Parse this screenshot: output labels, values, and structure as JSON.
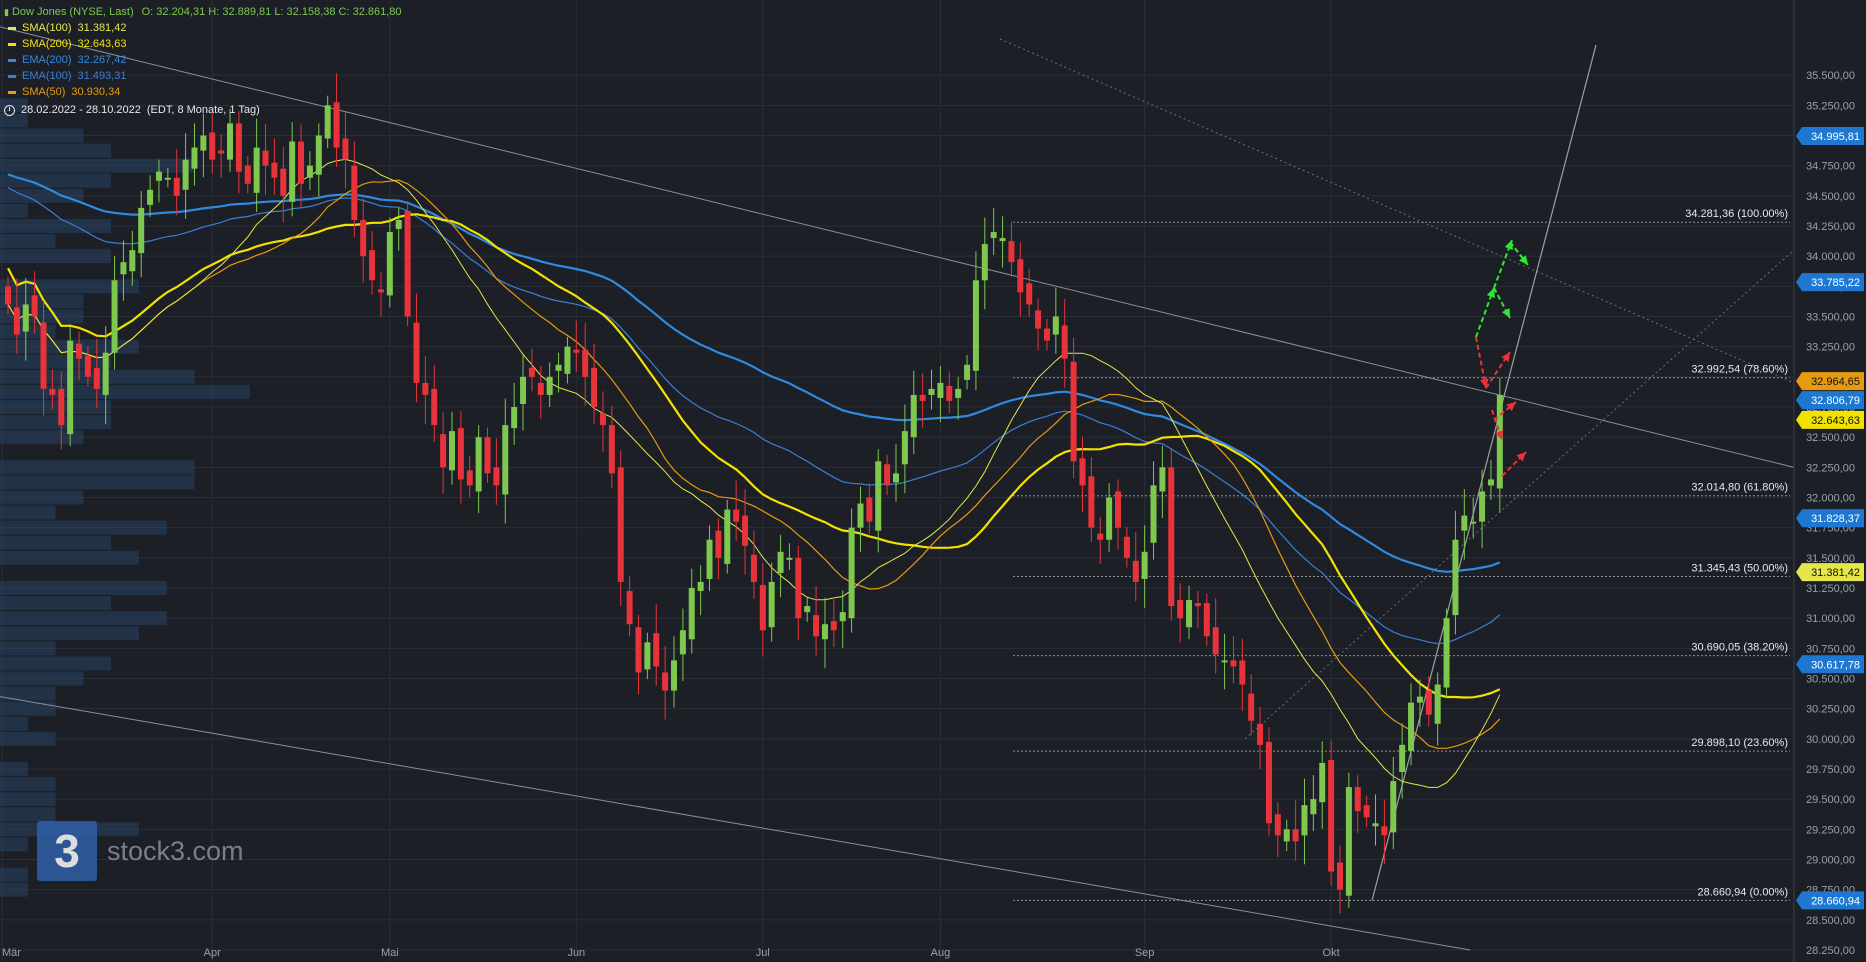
{
  "header": {
    "title": "Dow Jones (NYSE, Last)",
    "ohlc": "O: 32.204,31  H: 32.889,81  L: 32.158,38  C: 32.861,80",
    "period": "28.02.2022 - 28.10.2022",
    "period_detail": "(EDT, 8 Monate, 1 Tag)"
  },
  "indicators": [
    {
      "name": "SMA(100)",
      "value": "31.381,42",
      "color": "#e6e64a"
    },
    {
      "name": "SMA(200)",
      "value": "32.643,63",
      "color": "#f2e200"
    },
    {
      "name": "EMA(200)",
      "value": "32.267,42",
      "color": "#2f8ae0"
    },
    {
      "name": "EMA(100)",
      "value": "31.493,31",
      "color": "#3a7fd6"
    },
    {
      "name": "SMA(50)",
      "value": "30.930,34",
      "color": "#e69a10"
    }
  ],
  "logo": {
    "text": "stock3.com",
    "glyph": "3"
  },
  "colors": {
    "up": "#7ec84f",
    "down": "#e8333a",
    "background": "#1c1f26",
    "grid": "#2c3038"
  },
  "chart_data": {
    "type": "candlestick",
    "ylim": [
      28250,
      35750
    ],
    "y_ticks": [
      "28.250,00",
      "28.500,00",
      "28.750,00",
      "29.000,00",
      "29.250,00",
      "29.500,00",
      "29.750,00",
      "30.000,00",
      "30.250,00",
      "30.500,00",
      "30.750,00",
      "31.000,00",
      "31.250,00",
      "31.500,00",
      "31.750,00",
      "32.000,00",
      "32.250,00",
      "32.500,00",
      "32.750,00",
      "33.000,00",
      "33.250,00",
      "33.500,00",
      "33.750,00",
      "34.000,00",
      "34.250,00",
      "34.500,00",
      "34.750,00",
      "35.000,00",
      "35.250,00",
      "35.500,00"
    ],
    "x_labels": [
      {
        "label": "Mär",
        "index": 0
      },
      {
        "label": "Apr",
        "index": 23
      },
      {
        "label": "Mai",
        "index": 43
      },
      {
        "label": "Jun",
        "index": 64
      },
      {
        "label": "Jul",
        "index": 85
      },
      {
        "label": "Aug",
        "index": 105
      },
      {
        "label": "Sep",
        "index": 128
      },
      {
        "label": "Okt",
        "index": 149
      }
    ],
    "price_markers": [
      {
        "value": 34995.81,
        "label": "34.995,81",
        "color": "#1e78d2"
      },
      {
        "value": 33785.22,
        "label": "33.785,22",
        "color": "#1e78d2"
      },
      {
        "value": 32964.65,
        "label": "32.964,65",
        "color": "#e69a10"
      },
      {
        "value": 32806.79,
        "label": "32.806,79",
        "color": "#1e78d2"
      },
      {
        "value": 32643.63,
        "label": "32.643,63",
        "color": "#f2e200"
      },
      {
        "value": 31828.37,
        "label": "31.828,37",
        "color": "#1e78d2"
      },
      {
        "value": 31381.42,
        "label": "31.381,42",
        "color": "#e6e64a"
      },
      {
        "value": 30617.78,
        "label": "30.617,78",
        "color": "#1e78d2"
      },
      {
        "value": 28660.94,
        "label": "28.660,94",
        "color": "#1e78d2"
      }
    ],
    "fib_levels": [
      {
        "value": 34281.36,
        "label": "34.281,36 (100.00%)"
      },
      {
        "value": 32992.54,
        "label": "32.992,54 (78.60%)"
      },
      {
        "value": 32014.8,
        "label": "32.014,80 (61.80%)"
      },
      {
        "value": 31345.43,
        "label": "31.345,43 (50.00%)"
      },
      {
        "value": 30690.05,
        "label": "30.690,05 (38.20%)"
      },
      {
        "value": 29898.1,
        "label": "29.898,10 (23.60%)"
      },
      {
        "value": 28660.94,
        "label": "28.660,94 (0.00%)"
      }
    ],
    "close": [
      33600,
      33350,
      33600,
      33500,
      32900,
      32850,
      32600,
      33300,
      33150,
      33000,
      32900,
      33200,
      33800,
      33950,
      34050,
      34400,
      34550,
      34700,
      34650,
      34500,
      34800,
      34900,
      35000,
      34800,
      34850,
      35100,
      34700,
      34600,
      34900,
      34750,
      34650,
      34500,
      34950,
      34600,
      34750,
      35000,
      35250,
      34900,
      34800,
      34300,
      34000,
      33800,
      33700,
      34200,
      34300,
      33500,
      32950,
      32850,
      32600,
      32250,
      32550,
      32150,
      32100,
      32500,
      32200,
      32100,
      32600,
      32750,
      33000,
      33000,
      32850,
      33000,
      33100,
      33250,
      33200,
      33000,
      32750,
      32600,
      32200,
      31300,
      30950,
      30550,
      30800,
      30600,
      30400,
      30650,
      30900,
      31250,
      31300,
      31650,
      31500,
      31900,
      31800,
      31600,
      31300,
      30900,
      31300,
      31550,
      31500,
      31000,
      31100,
      30850,
      30950,
      30900,
      31050,
      31750,
      31950,
      31800,
      32300,
      32100,
      32200,
      32550,
      32850,
      32800,
      32900,
      32950,
      32800,
      32900,
      33100,
      33800,
      34100,
      34200,
      34150,
      33950,
      33700,
      33600,
      33400,
      33300,
      33500,
      33150,
      32300,
      32100,
      31750,
      31650,
      32000,
      31750,
      31500,
      31300,
      31550,
      32100,
      32250,
      31100,
      31000,
      31150,
      31100,
      30850,
      30700,
      30650,
      30600,
      30450,
      30150,
      29950,
      29300,
      29200,
      29250,
      29150,
      29450,
      29500,
      29800,
      28900,
      28750,
      29600,
      29400,
      29350,
      29300,
      29200,
      29650,
      29950,
      30300,
      30350,
      30200,
      30450,
      31000,
      31650,
      31850,
      31800,
      32050,
      32150,
      32850
    ]
  }
}
